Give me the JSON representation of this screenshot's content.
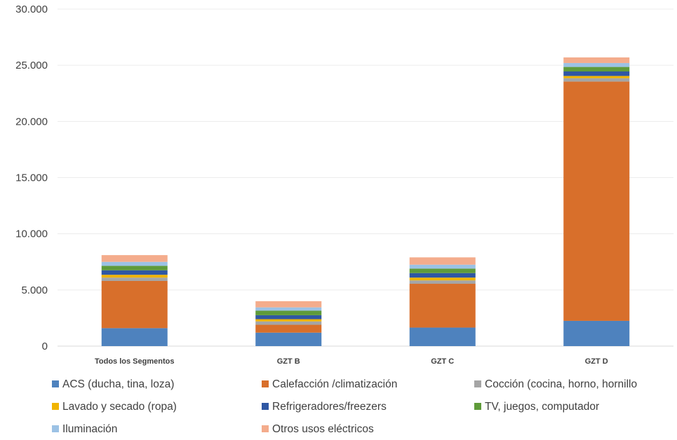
{
  "chart_data": {
    "type": "bar",
    "stacked": true,
    "categories": [
      "Todos los Segmentos",
      "GZT B",
      "GZT C",
      "GZT D"
    ],
    "ylim": [
      0,
      30000
    ],
    "yticks": [
      0,
      5000,
      10000,
      15000,
      20000,
      25000,
      30000
    ],
    "ytick_labels": [
      "0",
      "5.000",
      "10.000",
      "15.000",
      "20.000",
      "25.000",
      "30.000"
    ],
    "grid": true,
    "legend_position": "bottom",
    "series": [
      {
        "name": "ACS (ducha, tina, loza)",
        "color": "#4e82be",
        "values": [
          1600,
          1200,
          1650,
          2250
        ]
      },
      {
        "name": "Calefacción /climatización",
        "color": "#d86f2b",
        "values": [
          4200,
          700,
          3900,
          21300
        ]
      },
      {
        "name": "Cocción  (cocina, horno, hornillo",
        "color": "#a5a5a5",
        "values": [
          300,
          300,
          300,
          300
        ]
      },
      {
        "name": "Lavado y secado  (ropa)",
        "color": "#f0b400",
        "values": [
          250,
          200,
          250,
          200
        ]
      },
      {
        "name": "Refrigeradores/freezers",
        "color": "#2f57a3",
        "values": [
          400,
          350,
          400,
          400
        ]
      },
      {
        "name": "TV, juegos, computador",
        "color": "#5f9b3a",
        "values": [
          400,
          400,
          400,
          400
        ]
      },
      {
        "name": "Iluminación",
        "color": "#9cc2e5",
        "values": [
          350,
          300,
          350,
          350
        ]
      },
      {
        "name": "Otros usos eléctricos",
        "color": "#f4ac8c",
        "values": [
          600,
          550,
          650,
          500
        ]
      }
    ]
  }
}
